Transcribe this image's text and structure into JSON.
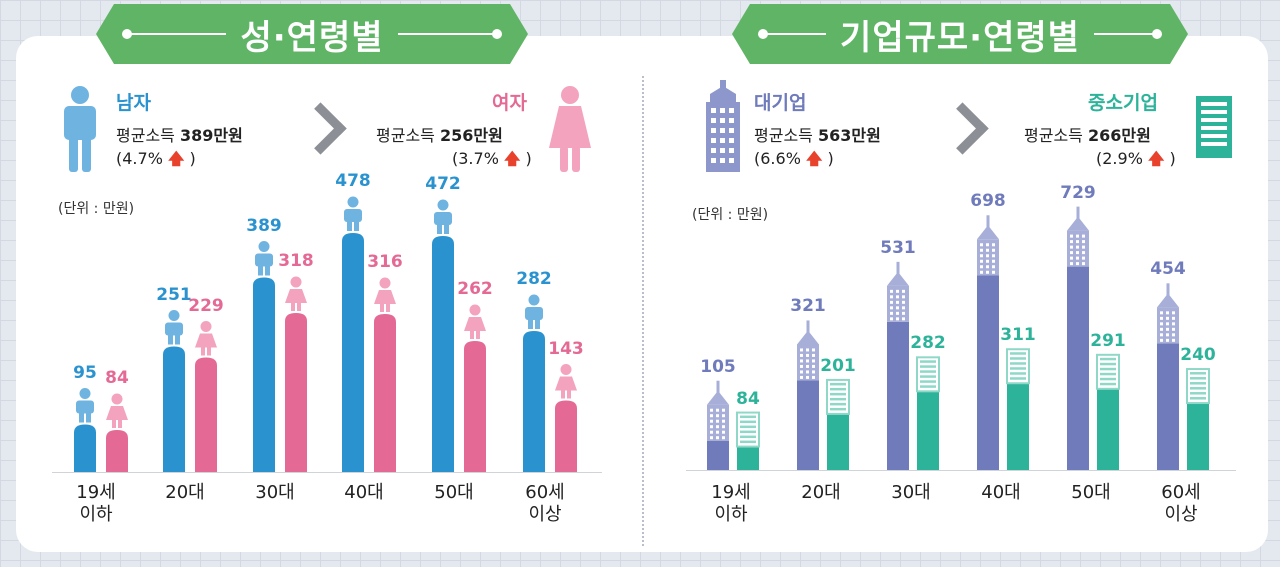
{
  "banners": {
    "left": "성·연령별",
    "right": "기업규모·연령별"
  },
  "gender": {
    "male": {
      "title": "남자",
      "avg_label": "평균소득",
      "avg_value": "389만원",
      "growth": "(4.7%",
      "growth_close": ")"
    },
    "female": {
      "title": "여자",
      "avg_label": "평균소득",
      "avg_value": "256만원",
      "growth": "(3.7%",
      "growth_close": ")"
    }
  },
  "company": {
    "large": {
      "title": "대기업",
      "avg_label": "평균소득",
      "avg_value": "563만원",
      "growth": "(6.6%",
      "growth_close": ")"
    },
    "small": {
      "title": "중소기업",
      "avg_label": "평균소득",
      "avg_value": "266만원",
      "growth": "(2.9%",
      "growth_close": ")"
    }
  },
  "up_arrow": "🡅",
  "unit_label": "(단위 : 만원)",
  "colors": {
    "male": "#2a93cf",
    "male_icon": "#6fb3e0",
    "female": "#e46a95",
    "female_icon": "#f3a3bd",
    "large": "#6f7bbb",
    "large_light": "#a7afd8",
    "small": "#2db39a",
    "small_light": "#8fd8c8",
    "banner": "#5fb466"
  },
  "icons": {
    "male": "male-person-icon",
    "female": "female-person-icon",
    "large": "office-building-icon",
    "small": "small-building-icon",
    "arrow": "chevron-right-icon"
  },
  "chart_data": [
    {
      "type": "bar",
      "categories": [
        "19세\n이하",
        "20대",
        "30대",
        "40대",
        "50대",
        "60세\n이상"
      ],
      "series": [
        {
          "name": "남자",
          "values": [
            95,
            251,
            389,
            478,
            472,
            282
          ]
        },
        {
          "name": "여자",
          "values": [
            84,
            229,
            318,
            316,
            262,
            143
          ]
        }
      ],
      "ylabel": "(단위 : 만원)",
      "ylim": [
        0,
        500
      ],
      "grid": false
    },
    {
      "type": "bar",
      "categories": [
        "19세\n이하",
        "20대",
        "30대",
        "40대",
        "50대",
        "60세\n이상"
      ],
      "series": [
        {
          "name": "대기업",
          "values": [
            105,
            321,
            531,
            698,
            729,
            454
          ]
        },
        {
          "name": "중소기업",
          "values": [
            84,
            201,
            282,
            311,
            291,
            240
          ]
        }
      ],
      "ylabel": "(단위 : 만원)",
      "ylim": [
        0,
        800
      ],
      "grid": false
    }
  ]
}
